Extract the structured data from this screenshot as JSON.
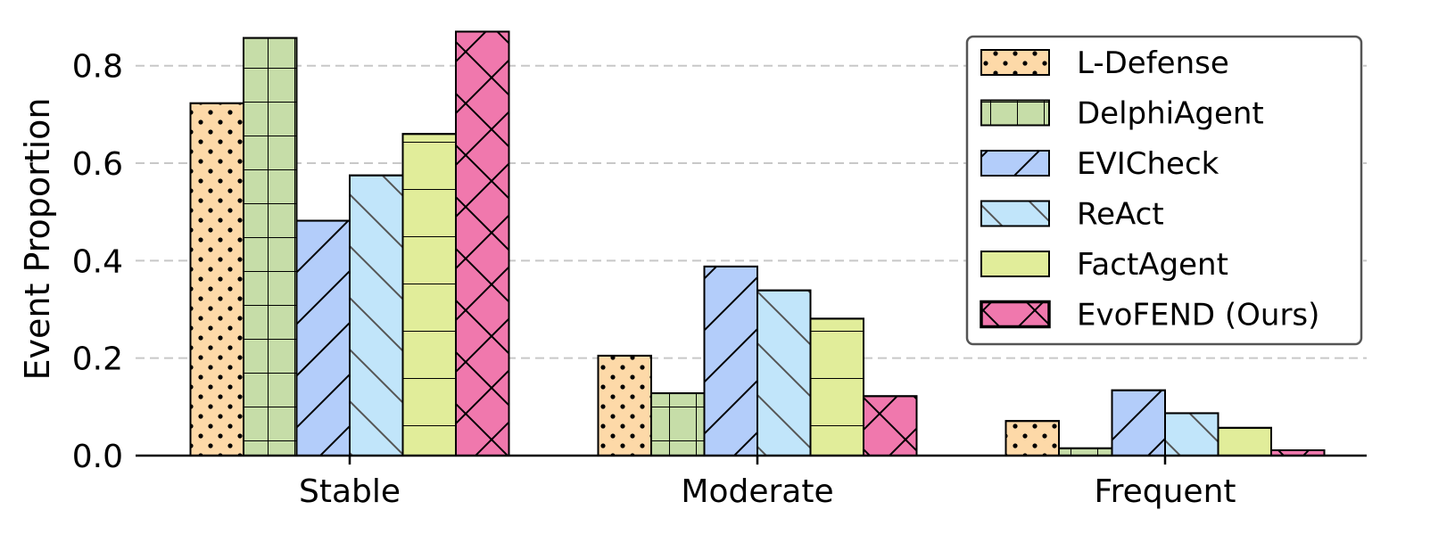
{
  "chart_data": {
    "type": "bar",
    "title": "",
    "xlabel": "",
    "ylabel": "Event Proportion",
    "ylim": [
      0,
      0.88
    ],
    "yticks": [
      "0.0",
      "0.2",
      "0.4",
      "0.6",
      "0.8"
    ],
    "grid": "horizontal dashed",
    "legend_position": "top-right",
    "categories": [
      "Stable",
      "Moderate",
      "Frequent"
    ],
    "series": [
      {
        "name": "L-Defense",
        "values": [
          0.723,
          0.205,
          0.071
        ],
        "color": "#fdd9a8",
        "hatch": "dots"
      },
      {
        "name": "DelphiAgent",
        "values": [
          0.857,
          0.128,
          0.015
        ],
        "color": "#c6dda8",
        "hatch": "grid"
      },
      {
        "name": "EVICheck",
        "values": [
          0.482,
          0.388,
          0.134
        ],
        "color": "#b3cdfa",
        "hatch": "forward-diagonal"
      },
      {
        "name": "ReAct",
        "values": [
          0.575,
          0.339,
          0.087
        ],
        "color": "#c1e5fa",
        "hatch": "back-diagonal"
      },
      {
        "name": "FactAgent",
        "values": [
          0.66,
          0.281,
          0.057
        ],
        "color": "#e1ed9a",
        "hatch": "horizontal"
      },
      {
        "name": "EvoFEND (Ours)",
        "values": [
          0.87,
          0.122,
          0.011
        ],
        "color": "#f078ad",
        "hatch": "cross"
      }
    ]
  }
}
